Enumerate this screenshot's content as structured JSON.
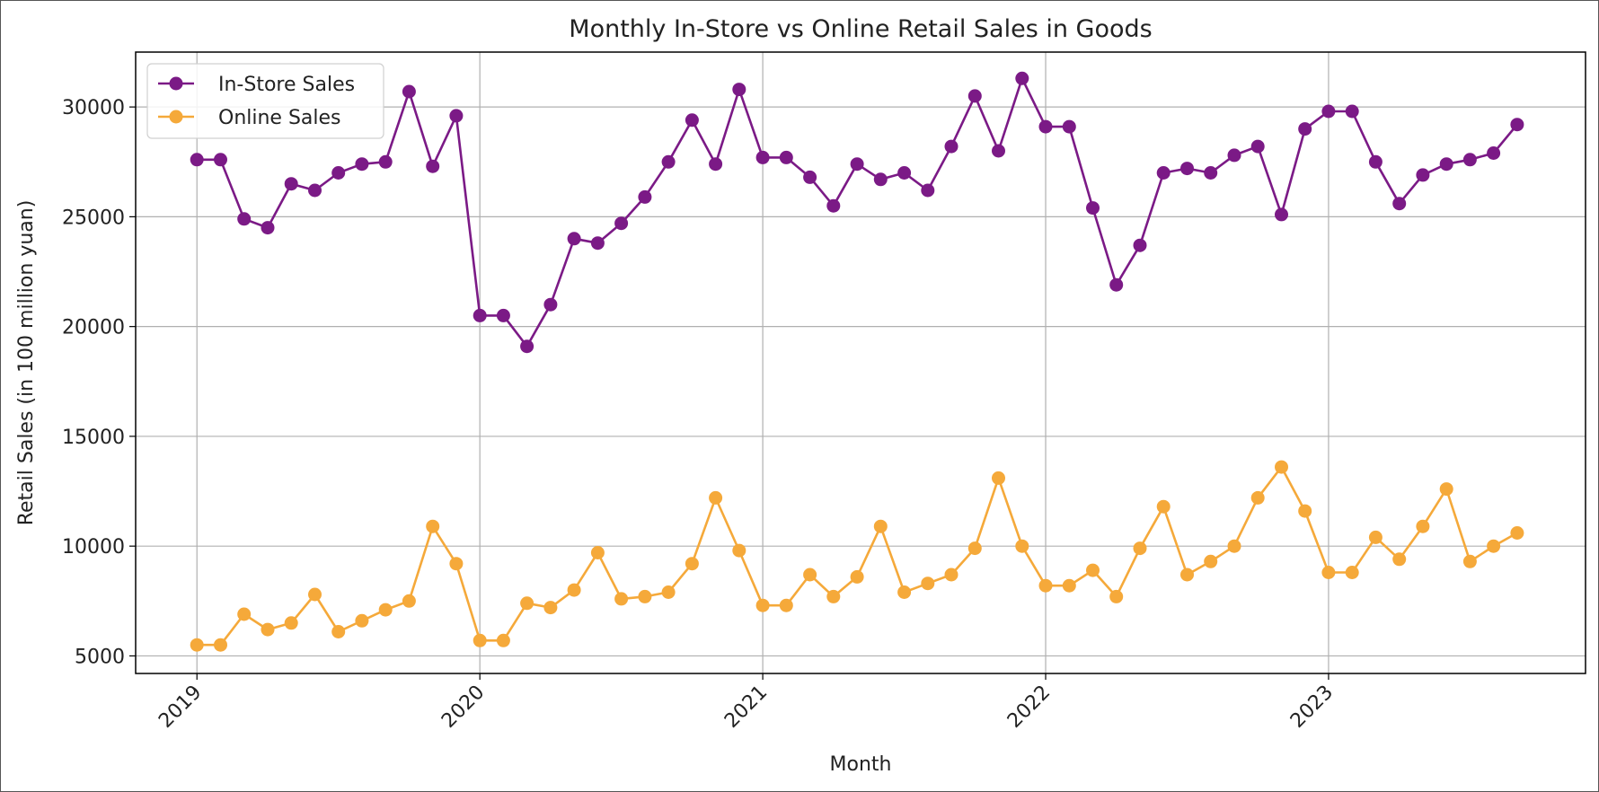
{
  "chart_data": {
    "type": "line",
    "title": "Monthly In-Store vs Online Retail Sales in Goods",
    "xlabel": "Month",
    "ylabel": "Retail Sales (in 100 million yuan)",
    "x_start": "2019-01",
    "x_ticks": [
      "2019",
      "2020",
      "2021",
      "2022",
      "2023"
    ],
    "y_ticks": [
      5000,
      10000,
      15000,
      20000,
      25000,
      30000
    ],
    "xlim": [
      "2018-10",
      "2023-12"
    ],
    "ylim": [
      4200,
      32500
    ],
    "grid": true,
    "legend_position": "top-left",
    "series": [
      {
        "name": "In-Store Sales",
        "color": "#7b1a86",
        "marker": "circle",
        "values": [
          27600,
          27600,
          24900,
          24500,
          26500,
          26200,
          27000,
          27400,
          27500,
          30700,
          27300,
          29600,
          20500,
          20500,
          19100,
          21000,
          24000,
          23800,
          24700,
          25900,
          27500,
          29400,
          27400,
          30800,
          27700,
          27700,
          26800,
          25500,
          27400,
          26700,
          27000,
          26200,
          28200,
          30500,
          28000,
          31300,
          29100,
          29100,
          25400,
          21900,
          23700,
          27000,
          27200,
          27000,
          27800,
          28200,
          25100,
          29000,
          29800,
          29800,
          27500,
          25600,
          26900,
          27400,
          27600,
          27900,
          29200
        ]
      },
      {
        "name": "Online Sales",
        "color": "#f5a93a",
        "marker": "circle",
        "values": [
          5500,
          5500,
          6900,
          6200,
          6500,
          7800,
          6100,
          6600,
          7100,
          7500,
          10900,
          9200,
          5700,
          5700,
          7400,
          7200,
          8000,
          9700,
          7600,
          7700,
          7900,
          9200,
          12200,
          9800,
          7300,
          7300,
          8700,
          7700,
          8600,
          10900,
          7900,
          8300,
          8700,
          9900,
          13100,
          10000,
          8200,
          8200,
          8900,
          7700,
          9900,
          11800,
          8700,
          9300,
          10000,
          12200,
          13600,
          11600,
          8800,
          8800,
          10400,
          9400,
          10900,
          12600,
          9300,
          10000,
          10600
        ]
      }
    ]
  }
}
